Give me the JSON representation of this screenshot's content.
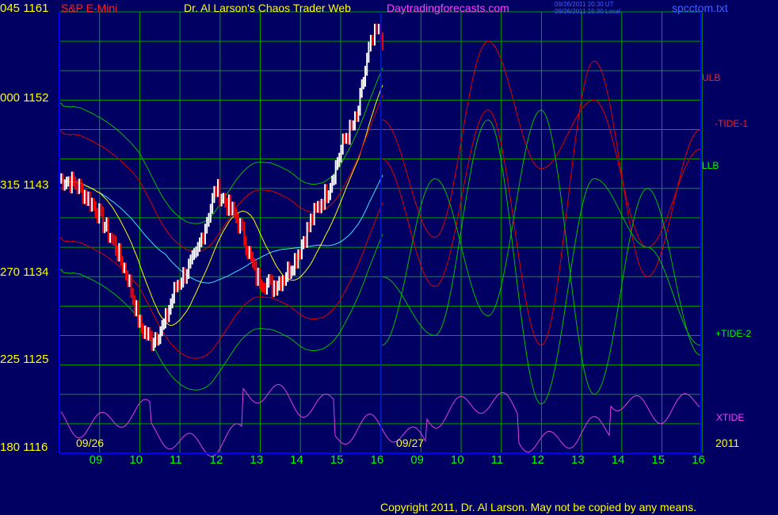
{
  "header": {
    "corner_left": "045 1161",
    "symbol": "S&P E-Mini",
    "title": "Dr. Al Larson's Chaos Trader Web",
    "site": "Daytradingforecasts.com",
    "stamp_ut": "09/26/2011 20:30 UT",
    "stamp_local": "09/26/2011 15:30 Local",
    "file": "spcctom.txt"
  },
  "y_axis_labels": [
    "045 1161",
    "000 1152",
    "315 1143",
    "270 1134",
    "225 1125",
    "180 1116"
  ],
  "date_labels": {
    "day1": "09/26",
    "day2": "09/27",
    "year": "2011"
  },
  "x_tick_labels": [
    "09",
    "10",
    "11",
    "12",
    "13",
    "14",
    "15",
    "16",
    "09",
    "10",
    "11",
    "12",
    "13",
    "14",
    "15",
    "16"
  ],
  "right_labels": {
    "ulb": "ULB",
    "tide1": "-TIDE-1",
    "llb": "LLB",
    "tide2": "+TIDE-2",
    "xtide": "XTIDE"
  },
  "footer": {
    "copyright": "Copyright 2011, Dr. Al Larson. May not be copied by any means."
  },
  "colors": {
    "background": "#000062",
    "grid": "#00a000",
    "axis": "#0000ff",
    "price_up": "#ffffff",
    "price_down": "#ff0000",
    "avg_short": "#ffff00",
    "avg_long": "#40e0ff",
    "envelope_red": "#e00000",
    "envelope_green": "#00c000",
    "tide1": "#e00000",
    "tide2": "#00c000",
    "xtide": "#e040e0"
  },
  "chart_data": {
    "type": "line",
    "title": "S&P E-Mini",
    "ylim": [
      1116,
      1161
    ],
    "x_ticks": [
      "09",
      "10",
      "11",
      "12",
      "13",
      "14",
      "15",
      "16",
      "09",
      "10",
      "11",
      "12",
      "13",
      "14",
      "15",
      "16"
    ],
    "series": [
      {
        "name": "S&P E-Mini price",
        "x": [
          8.1,
          8.5,
          9.0,
          9.5,
          9.8,
          10.1,
          10.4,
          10.7,
          11.0,
          11.5,
          12.0,
          12.5,
          12.7,
          13.0,
          13.4,
          13.7,
          14.0,
          14.4,
          14.8,
          15.2,
          15.5,
          15.8,
          16.0,
          16.2
        ],
        "y": [
          1144,
          1143.5,
          1141,
          1137,
          1134,
          1129,
          1127.5,
          1129,
          1133,
          1136,
          1143,
          1140,
          1138,
          1134,
          1133,
          1134,
          1136,
          1140,
          1143,
          1148,
          1150,
          1157,
          1159,
          1158
        ]
      },
      {
        "name": "ULB",
        "y": [
          1150,
          1138,
          1158,
          1145,
          1152,
          1137,
          1147
        ]
      },
      {
        "name": "-TIDE-1",
        "y": [
          1146,
          1133,
          1151,
          1127,
          1156,
          1134,
          1149
        ]
      },
      {
        "name": "LLB",
        "y": [
          1134,
          1128,
          1150,
          1121,
          1144,
          1137,
          1127
        ]
      },
      {
        "name": "+TIDE-2",
        "y": [
          1127,
          1144,
          1130,
          1151,
          1122,
          1143,
          1126
        ]
      },
      {
        "name": "XTIDE",
        "y": [
          1119.5,
          1117.5,
          1121.5,
          1118,
          1120.5,
          1117.8,
          1121,
          1118
        ]
      }
    ]
  }
}
